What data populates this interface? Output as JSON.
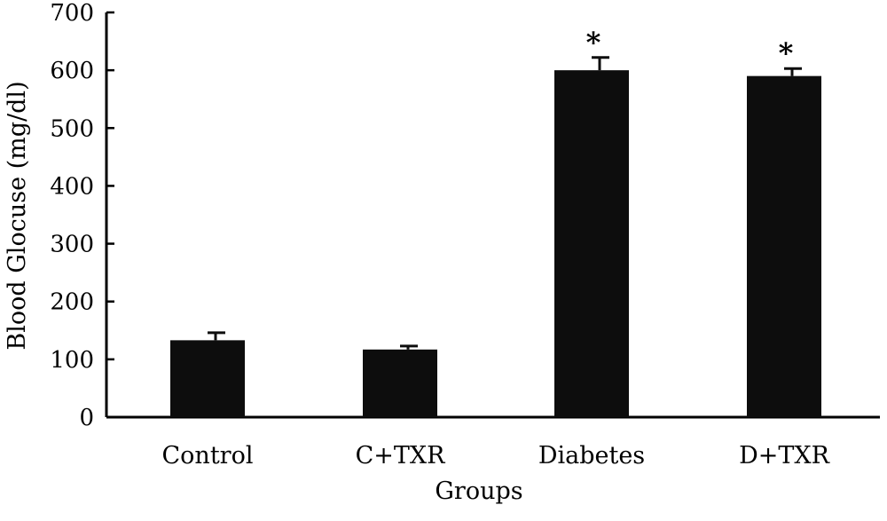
{
  "chart_data": {
    "type": "bar",
    "title": "",
    "xlabel": "Groups",
    "ylabel": "Blood Glocuse (mg/dl)",
    "ylim": [
      0,
      700
    ],
    "yticks": [
      0,
      100,
      200,
      300,
      400,
      500,
      600,
      700
    ],
    "grid": false,
    "legend": "none",
    "categories": [
      "Control",
      "C+TXR",
      "Diabetes",
      "D+TXR"
    ],
    "values": [
      133,
      117,
      600,
      590
    ],
    "errors": [
      13,
      6,
      22,
      13
    ],
    "significance": [
      "",
      "",
      "*",
      "*"
    ],
    "bar_color": "#0d0d0d",
    "sig_color": "#1f3a5f"
  }
}
